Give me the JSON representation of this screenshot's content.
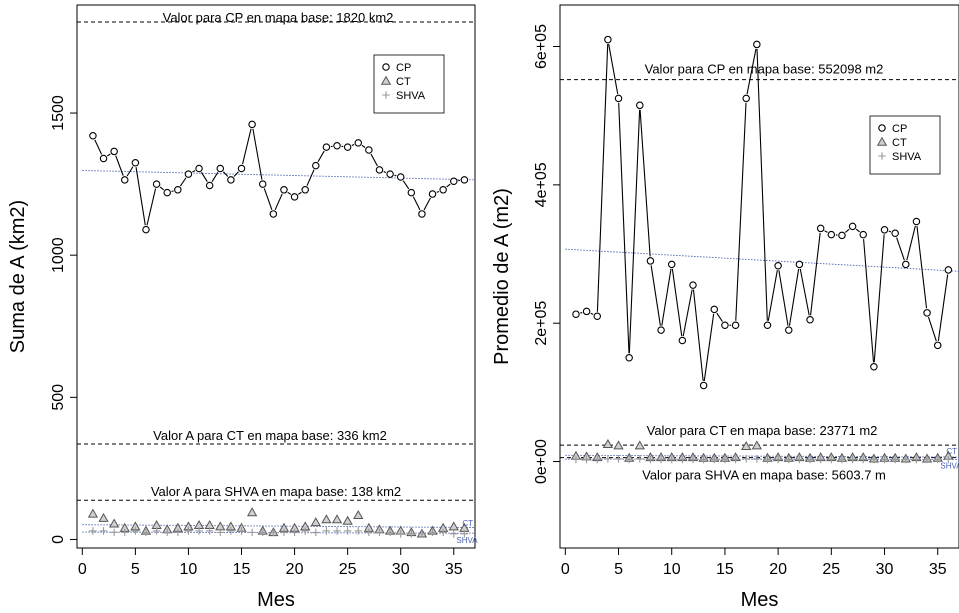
{
  "chart_data": [
    {
      "type": "line",
      "xlabel": "Mes",
      "ylabel": "Suma de A (km2)",
      "xlim": [
        -0.5,
        37
      ],
      "ylim": [
        -30,
        1880
      ],
      "xticks": [
        0,
        5,
        10,
        15,
        20,
        25,
        30,
        35
      ],
      "yticks": [
        0,
        500,
        1000,
        1500
      ],
      "x": [
        1,
        2,
        3,
        4,
        5,
        6,
        7,
        8,
        9,
        10,
        11,
        12,
        13,
        14,
        15,
        16,
        17,
        18,
        19,
        20,
        21,
        22,
        23,
        24,
        25,
        26,
        27,
        28,
        29,
        30,
        31,
        32,
        33,
        34,
        35,
        36
      ],
      "series": [
        {
          "name": "CP",
          "marker": "circle",
          "color": "#000000",
          "values": [
            1420,
            1340,
            1365,
            1265,
            1325,
            1090,
            1250,
            1220,
            1230,
            1285,
            1305,
            1245,
            1305,
            1265,
            1305,
            1460,
            1250,
            1145,
            1230,
            1205,
            1230,
            1315,
            1380,
            1385,
            1380,
            1395,
            1370,
            1300,
            1285,
            1275,
            1220,
            1145,
            1215,
            1230,
            1260,
            1265
          ]
        },
        {
          "name": "CT",
          "marker": "triangle",
          "color": "#555555",
          "values": [
            90,
            75,
            55,
            40,
            45,
            30,
            50,
            35,
            40,
            45,
            50,
            50,
            45,
            45,
            40,
            95,
            30,
            25,
            40,
            40,
            45,
            60,
            70,
            70,
            65,
            85,
            40,
            35,
            30,
            30,
            25,
            20,
            30,
            40,
            45,
            40
          ]
        },
        {
          "name": "SHVA",
          "marker": "plus",
          "color": "#999999",
          "values": [
            30,
            30,
            25,
            25,
            30,
            25,
            30,
            25,
            25,
            30,
            30,
            30,
            25,
            30,
            30,
            25,
            25,
            25,
            25,
            25,
            30,
            25,
            30,
            30,
            30,
            30,
            25,
            25,
            25,
            20,
            20,
            20,
            25,
            25,
            20,
            20
          ]
        }
      ],
      "reference_lines": [
        {
          "label": "Valor para CP en mapa base: 1820 km2",
          "value": 1820
        },
        {
          "label": "Valor A para CT en mapa base: 336 km2",
          "value": 336
        },
        {
          "label": "Valor A para SHVA en mapa base: 138 km2",
          "value": 138
        }
      ],
      "trend_lines": [
        {
          "series": "CP",
          "from": [
            0,
            1298
          ],
          "to": [
            37,
            1265
          ]
        },
        {
          "series": "CT",
          "from": [
            0,
            52
          ],
          "to": [
            37,
            42
          ]
        },
        {
          "series": "SHVA",
          "from": [
            0,
            26
          ],
          "to": [
            37,
            22
          ]
        }
      ],
      "end_labels": [
        "CT",
        "SHVA"
      ],
      "legend": {
        "placement": "top-right",
        "items": [
          "CP",
          "CT",
          "SHVA"
        ]
      },
      "grid": false
    },
    {
      "type": "line",
      "xlabel": "Mes",
      "ylabel": "Promedio de A (m2)",
      "xlim": [
        -0.5,
        37
      ],
      "ylim": [
        -125000,
        660000
      ],
      "xticks": [
        0,
        5,
        10,
        15,
        20,
        25,
        30,
        35
      ],
      "yticks": [
        0,
        200000,
        400000,
        600000
      ],
      "yticklabels": [
        "0e+00",
        "2e+05",
        "4e+05",
        "6e+05"
      ],
      "x": [
        1,
        2,
        3,
        4,
        5,
        6,
        7,
        8,
        9,
        10,
        11,
        12,
        13,
        14,
        15,
        16,
        17,
        18,
        19,
        20,
        21,
        22,
        23,
        24,
        25,
        26,
        27,
        28,
        29,
        30,
        31,
        32,
        33,
        34,
        35,
        36
      ],
      "series": [
        {
          "name": "CP",
          "marker": "circle",
          "color": "#000000",
          "values": [
            213000,
            217000,
            210000,
            610000,
            525000,
            150000,
            515000,
            290000,
            190000,
            285000,
            175000,
            255000,
            110000,
            220000,
            197000,
            197000,
            525000,
            603000,
            197000,
            283000,
            190000,
            285000,
            205000,
            337000,
            328000,
            327000,
            340000,
            328000,
            137000,
            335000,
            330000,
            285000,
            347000,
            215000,
            168000,
            277000
          ]
        },
        {
          "name": "CT",
          "marker": "triangle",
          "color": "#555555",
          "values": [
            8000,
            7000,
            6000,
            25000,
            23000,
            5000,
            23000,
            6000,
            6000,
            6000,
            6000,
            6000,
            5000,
            5000,
            5000,
            6000,
            22000,
            23000,
            5000,
            6000,
            5000,
            6000,
            5000,
            6000,
            6000,
            5000,
            6000,
            6000,
            4000,
            5000,
            5000,
            4000,
            6000,
            4000,
            5000,
            8000
          ]
        },
        {
          "name": "SHVA",
          "marker": "plus",
          "color": "#999999",
          "values": [
            3000,
            3000,
            3000,
            4000,
            4000,
            3000,
            4000,
            3000,
            3000,
            3000,
            3000,
            3000,
            3000,
            3000,
            3000,
            3000,
            4000,
            4000,
            3000,
            3000,
            3000,
            3000,
            3000,
            3000,
            3000,
            3000,
            3000,
            3000,
            3000,
            3000,
            3000,
            3000,
            3000,
            3000,
            3000,
            3000
          ]
        }
      ],
      "reference_lines": [
        {
          "label": "Valor para CP en mapa base: 552098 m2",
          "value": 552098
        },
        {
          "label": "Valor para CT en mapa base: 23771 m2",
          "value": 23771
        },
        {
          "label": "Valor para SHVA en mapa base: 5603.7 m",
          "value": 5603.7
        }
      ],
      "trend_lines": [
        {
          "series": "CP",
          "from": [
            0,
            307000
          ],
          "to": [
            37,
            275000
          ]
        },
        {
          "series": "CT",
          "from": [
            0,
            9000
          ],
          "to": [
            37,
            6500
          ]
        },
        {
          "series": "SHVA",
          "from": [
            0,
            3500
          ],
          "to": [
            37,
            3000
          ]
        }
      ],
      "end_labels": [
        "CT",
        "SHVA"
      ],
      "legend": {
        "placement": "top-right",
        "items": [
          "CP",
          "CT",
          "SHVA"
        ]
      },
      "grid": false
    }
  ]
}
